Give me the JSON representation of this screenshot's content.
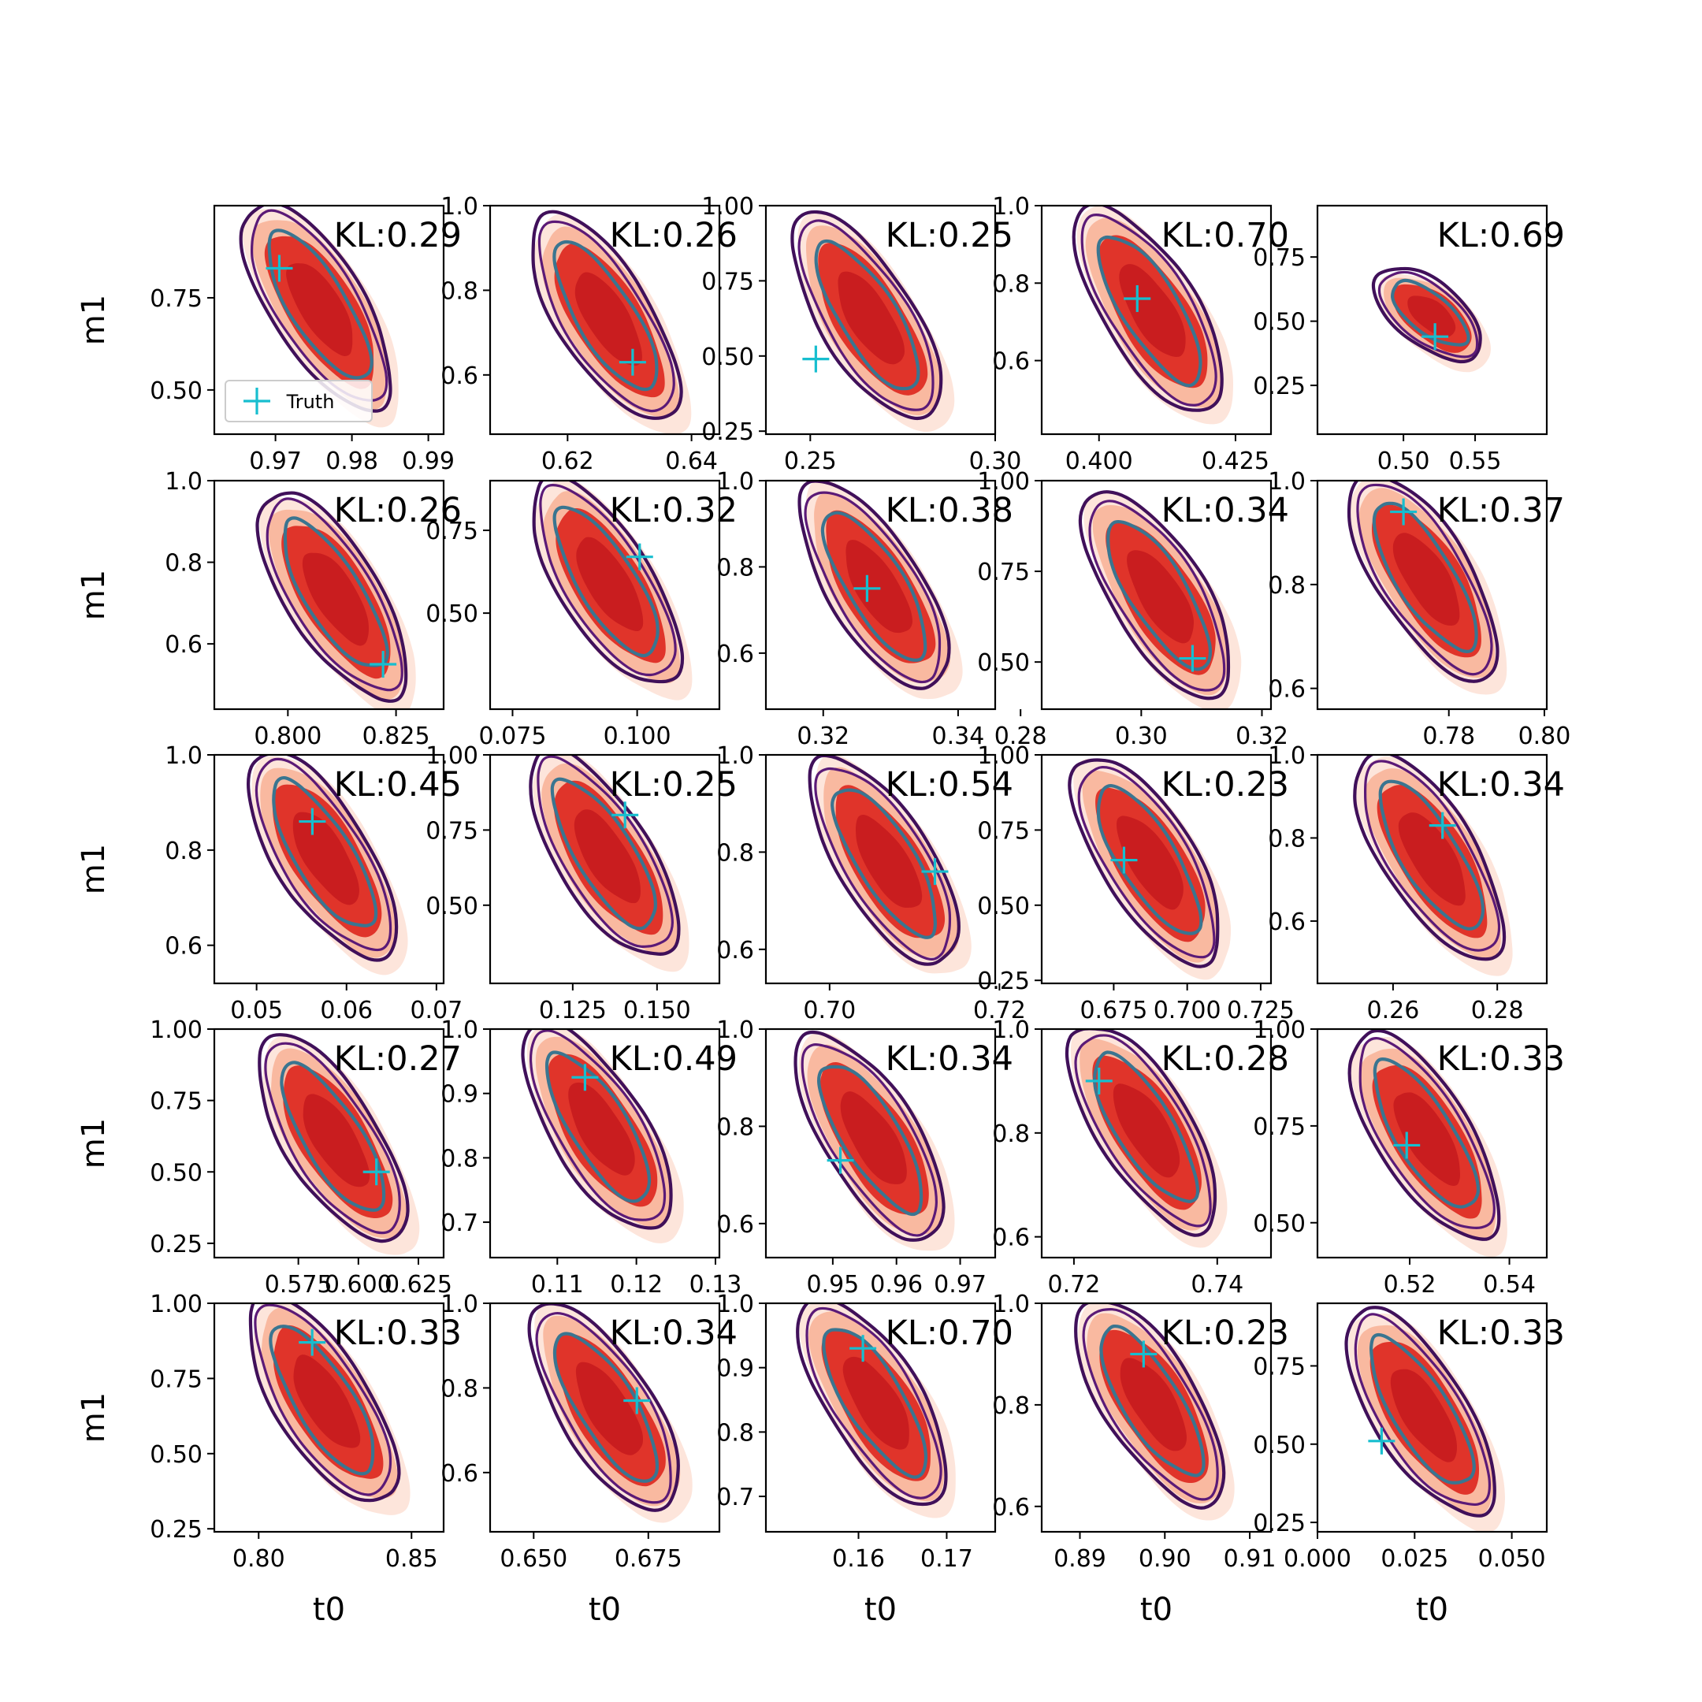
{
  "chart_data": {
    "type": "contour",
    "grid": "off",
    "legend": {
      "placement": "lower-left of first panel",
      "entries": [
        "Truth"
      ]
    },
    "colors": {
      "fill_outer": "#fde5db",
      "fill_mid": "#f9b9a0",
      "fill_inner": "#e0342a",
      "fill_core": "#c91d1f",
      "line_outer": "#40105a",
      "line_mid": "#5b1a77",
      "line_inner": "#3a7590",
      "truth": "#17becf"
    },
    "panels": [
      {
        "kl": "KL:0.29",
        "xlim": [
          0.962,
          0.992
        ],
        "ylim": [
          0.38,
          1.0
        ],
        "xticks": [
          0.97,
          0.98,
          0.99
        ],
        "xtick_labels": [
          "0.97",
          "0.98",
          "0.99"
        ],
        "yticks": [
          0.5,
          0.75
        ],
        "ytick_labels": [
          "0.50",
          "0.75"
        ],
        "ylabel": "m1",
        "xlabel": "",
        "truth": [
          0.9705,
          0.83
        ]
      },
      {
        "kl": "KL:0.26",
        "xlim": [
          0.6075,
          0.6445
        ],
        "ylim": [
          0.46,
          1.0
        ],
        "xticks": [
          0.62,
          0.64
        ],
        "xtick_labels": [
          "0.62",
          "0.64"
        ],
        "yticks": [
          0.6,
          0.8,
          1.0
        ],
        "ytick_labels": [
          "0.6",
          "0.8",
          "1.0"
        ],
        "ylabel": "",
        "xlabel": "",
        "truth": [
          0.6305,
          0.63
        ]
      },
      {
        "kl": "KL:0.25",
        "xlim": [
          0.238,
          0.3
        ],
        "ylim": [
          0.24,
          1.0
        ],
        "xticks": [
          0.25,
          0.3
        ],
        "xtick_labels": [
          "0.25",
          "0.30"
        ],
        "yticks": [
          0.25,
          0.5,
          0.75,
          1.0
        ],
        "ytick_labels": [
          "0.25",
          "0.50",
          "0.75",
          "1.00"
        ],
        "ylabel": "",
        "xlabel": "",
        "truth": [
          0.2515,
          0.49
        ]
      },
      {
        "kl": "KL:0.70",
        "xlim": [
          0.3895,
          0.4315
        ],
        "ylim": [
          0.41,
          1.0
        ],
        "xticks": [
          0.4,
          0.425
        ],
        "xtick_labels": [
          "0.400",
          "0.425"
        ],
        "yticks": [
          0.6,
          0.8,
          1.0
        ],
        "ytick_labels": [
          "0.6",
          "0.8",
          "1.0"
        ],
        "ylabel": "",
        "xlabel": "",
        "truth": [
          0.407,
          0.76
        ]
      },
      {
        "kl": "KL:0.69",
        "xlim": [
          0.44,
          0.6
        ],
        "ylim": [
          0.06,
          0.95
        ],
        "xticks": [
          0.5,
          0.55
        ],
        "xtick_labels": [
          "0.50",
          "0.55"
        ],
        "yticks": [
          0.25,
          0.5,
          0.75
        ],
        "ytick_labels": [
          "0.25",
          "0.50",
          "0.75"
        ],
        "ylabel": "",
        "xlabel": "",
        "truth": [
          0.522,
          0.44
        ]
      },
      {
        "kl": "KL:0.26",
        "xlim": [
          0.783,
          0.836
        ],
        "ylim": [
          0.44,
          1.0
        ],
        "xticks": [
          0.8,
          0.825
        ],
        "xtick_labels": [
          "0.800",
          "0.825"
        ],
        "yticks": [
          0.6,
          0.8,
          1.0
        ],
        "ytick_labels": [
          "0.6",
          "0.8",
          "1.0"
        ],
        "ylabel": "m1",
        "xlabel": "",
        "truth": [
          0.822,
          0.55
        ]
      },
      {
        "kl": "KL:0.32",
        "xlim": [
          0.0705,
          0.1165
        ],
        "ylim": [
          0.21,
          0.9
        ],
        "xticks": [
          0.075,
          0.1
        ],
        "xtick_labels": [
          "0.075",
          "0.100"
        ],
        "yticks": [
          0.5,
          0.75
        ],
        "ytick_labels": [
          "0.50",
          "0.75"
        ],
        "ylabel": "",
        "xlabel": "",
        "truth": [
          0.1005,
          0.67
        ]
      },
      {
        "kl": "KL:0.38",
        "xlim": [
          0.3115,
          0.3455
        ],
        "ylim": [
          0.47,
          1.0
        ],
        "xticks": [
          0.32,
          0.34
        ],
        "xtick_labels": [
          "0.32",
          "0.34"
        ],
        "yticks": [
          0.6,
          0.8,
          1.0
        ],
        "ytick_labels": [
          "0.6",
          "0.8",
          "1.0"
        ],
        "ylabel": "",
        "xlabel": "",
        "truth": [
          0.3265,
          0.75
        ]
      },
      {
        "kl": "KL:0.34",
        "xlim": [
          0.2835,
          0.3215
        ],
        "ylim": [
          0.37,
          1.0
        ],
        "xticks": [
          0.28,
          0.3,
          0.32
        ],
        "xtick_labels": [
          "0.28",
          "0.30",
          "0.32"
        ],
        "yticks": [
          0.5,
          0.75,
          1.0
        ],
        "ytick_labels": [
          "0.50",
          "0.75",
          "1.00"
        ],
        "ylabel": "",
        "xlabel": "",
        "truth": [
          0.3085,
          0.51
        ]
      },
      {
        "kl": "KL:0.37",
        "xlim": [
          0.7525,
          0.8005
        ],
        "ylim": [
          0.56,
          1.0
        ],
        "xticks": [
          0.78,
          0.8
        ],
        "xtick_labels": [
          "0.78",
          "0.80"
        ],
        "yticks": [
          0.6,
          0.8,
          1.0
        ],
        "ytick_labels": [
          "0.6",
          "0.8",
          "1.0"
        ],
        "ylabel": "",
        "xlabel": "",
        "truth": [
          0.7705,
          0.94
        ]
      },
      {
        "kl": "KL:0.45",
        "xlim": [
          0.0453,
          0.0708
        ],
        "ylim": [
          0.52,
          1.0
        ],
        "xticks": [
          0.05,
          0.06,
          0.07
        ],
        "xtick_labels": [
          "0.05",
          "0.06",
          "0.07"
        ],
        "yticks": [
          0.6,
          0.8,
          1.0
        ],
        "ytick_labels": [
          "0.6",
          "0.8",
          "1.0"
        ],
        "ylabel": "m1",
        "xlabel": "",
        "truth": [
          0.0562,
          0.86
        ]
      },
      {
        "kl": "KL:0.25",
        "xlim": [
          0.1005,
          0.1685
        ],
        "ylim": [
          0.24,
          1.0
        ],
        "xticks": [
          0.125,
          0.15
        ],
        "xtick_labels": [
          "0.125",
          "0.150"
        ],
        "yticks": [
          0.5,
          0.75,
          1.0
        ],
        "ytick_labels": [
          "0.50",
          "0.75",
          "1.00"
        ],
        "ylabel": "",
        "xlabel": "",
        "truth": [
          0.1405,
          0.8
        ]
      },
      {
        "kl": "KL:0.54",
        "xlim": [
          0.6925,
          0.7195
        ],
        "ylim": [
          0.53,
          1.0
        ],
        "xticks": [
          0.7,
          0.72
        ],
        "xtick_labels": [
          "0.70",
          "0.72"
        ],
        "yticks": [
          0.6,
          0.8,
          1.0
        ],
        "ytick_labels": [
          "0.6",
          "0.8",
          "1.0"
        ],
        "ylabel": "",
        "xlabel": "",
        "truth": [
          0.7124,
          0.76
        ]
      },
      {
        "kl": "KL:0.23",
        "xlim": [
          0.6505,
          0.7285
        ],
        "ylim": [
          0.24,
          1.0
        ],
        "xticks": [
          0.675,
          0.7,
          0.725
        ],
        "xtick_labels": [
          "0.675",
          "0.700",
          "0.725"
        ],
        "yticks": [
          0.25,
          0.5,
          0.75,
          1.0
        ],
        "ytick_labels": [
          "0.25",
          "0.50",
          "0.75",
          "1.00"
        ],
        "ylabel": "",
        "xlabel": "",
        "truth": [
          0.6785,
          0.65
        ]
      },
      {
        "kl": "KL:0.34",
        "xlim": [
          0.2455,
          0.2895
        ],
        "ylim": [
          0.45,
          1.0
        ],
        "xticks": [
          0.26,
          0.28
        ],
        "xtick_labels": [
          "0.26",
          "0.28"
        ],
        "yticks": [
          0.6,
          0.8,
          1.0
        ],
        "ytick_labels": [
          "0.6",
          "0.8",
          "1.0"
        ],
        "ylabel": "",
        "xlabel": "",
        "truth": [
          0.2695,
          0.83
        ]
      },
      {
        "kl": "KL:0.27",
        "xlim": [
          0.54,
          0.6355
        ],
        "ylim": [
          0.2,
          1.0
        ],
        "xticks": [
          0.575,
          0.6,
          0.625
        ],
        "xtick_labels": [
          "0.575",
          "0.600",
          "0.625"
        ],
        "yticks": [
          0.25,
          0.5,
          0.75,
          1.0
        ],
        "ytick_labels": [
          "0.25",
          "0.50",
          "0.75",
          "1.00"
        ],
        "ylabel": "m1",
        "xlabel": "",
        "truth": [
          0.6075,
          0.5
        ]
      },
      {
        "kl": "KL:0.49",
        "xlim": [
          0.1015,
          0.1305
        ],
        "ylim": [
          0.645,
          1.0
        ],
        "xticks": [
          0.11,
          0.12,
          0.13
        ],
        "xtick_labels": [
          "0.11",
          "0.12",
          "0.13"
        ],
        "yticks": [
          0.7,
          0.8,
          0.9,
          1.0
        ],
        "ytick_labels": [
          "0.7",
          "0.8",
          "0.9",
          "1.0"
        ],
        "ylabel": "",
        "xlabel": "",
        "truth": [
          0.1135,
          0.925
        ]
      },
      {
        "kl": "KL:0.34",
        "xlim": [
          0.9395,
          0.9755
        ],
        "ylim": [
          0.53,
          1.0
        ],
        "xticks": [
          0.95,
          0.96,
          0.97
        ],
        "xtick_labels": [
          "0.95",
          "0.96",
          "0.97"
        ],
        "yticks": [
          0.6,
          0.8,
          1.0
        ],
        "ytick_labels": [
          "0.6",
          "0.8",
          "1.0"
        ],
        "ylabel": "",
        "xlabel": "",
        "truth": [
          0.9512,
          0.73
        ]
      },
      {
        "kl": "KL:0.28",
        "xlim": [
          0.7155,
          0.7475
        ],
        "ylim": [
          0.56,
          1.0
        ],
        "xticks": [
          0.72,
          0.74
        ],
        "xtick_labels": [
          "0.72",
          "0.74"
        ],
        "yticks": [
          0.6,
          0.8,
          1.0
        ],
        "ytick_labels": [
          "0.6",
          "0.8",
          "1.0"
        ],
        "ylabel": "",
        "xlabel": "",
        "truth": [
          0.7235,
          0.9
        ]
      },
      {
        "kl": "KL:0.33",
        "xlim": [
          0.5015,
          0.5475
        ],
        "ylim": [
          0.41,
          1.0
        ],
        "xticks": [
          0.52,
          0.54
        ],
        "xtick_labels": [
          "0.52",
          "0.54"
        ],
        "yticks": [
          0.5,
          0.75,
          1.0
        ],
        "ytick_labels": [
          "0.50",
          "0.75",
          "1.00"
        ],
        "ylabel": "",
        "xlabel": "",
        "truth": [
          0.5194,
          0.7
        ]
      },
      {
        "kl": "KL:0.33",
        "xlim": [
          0.7855,
          0.8605
        ],
        "ylim": [
          0.24,
          1.0
        ],
        "xticks": [
          0.8,
          0.85
        ],
        "xtick_labels": [
          "0.80",
          "0.85"
        ],
        "yticks": [
          0.25,
          0.5,
          0.75,
          1.0
        ],
        "ytick_labels": [
          "0.25",
          "0.50",
          "0.75",
          "1.00"
        ],
        "ylabel": "m1",
        "xlabel": "t0",
        "truth": [
          0.8175,
          0.87
        ]
      },
      {
        "kl": "KL:0.34",
        "xlim": [
          0.6405,
          0.6905
        ],
        "ylim": [
          0.46,
          1.0
        ],
        "xticks": [
          0.65,
          0.675
        ],
        "xtick_labels": [
          "0.650",
          "0.675"
        ],
        "yticks": [
          0.6,
          0.8,
          1.0
        ],
        "ytick_labels": [
          "0.6",
          "0.8",
          "1.0"
        ],
        "ylabel": "",
        "xlabel": "t0",
        "truth": [
          0.6725,
          0.77
        ]
      },
      {
        "kl": "KL:0.70",
        "xlim": [
          0.1495,
          0.1755
        ],
        "ylim": [
          0.645,
          1.0
        ],
        "xticks": [
          0.16,
          0.17
        ],
        "xtick_labels": [
          "0.16",
          "0.17"
        ],
        "yticks": [
          0.7,
          0.8,
          0.9,
          1.0
        ],
        "ytick_labels": [
          "0.7",
          "0.8",
          "0.9",
          "1.0"
        ],
        "ylabel": "",
        "xlabel": "t0",
        "truth": [
          0.1605,
          0.93
        ]
      },
      {
        "kl": "KL:0.23",
        "xlim": [
          0.8855,
          0.9125
        ],
        "ylim": [
          0.55,
          1.0
        ],
        "xticks": [
          0.89,
          0.9,
          0.91
        ],
        "xtick_labels": [
          "0.89",
          "0.90",
          "0.91"
        ],
        "yticks": [
          0.6,
          0.8,
          1.0
        ],
        "ytick_labels": [
          "0.6",
          "0.8",
          "1.0"
        ],
        "ylabel": "",
        "xlabel": "t0",
        "truth": [
          0.8975,
          0.9
        ]
      },
      {
        "kl": "KL:0.33",
        "xlim": [
          0.0,
          0.059
        ],
        "ylim": [
          0.22,
          0.95
        ],
        "xticks": [
          0.0,
          0.025,
          0.05
        ],
        "xtick_labels": [
          "0.000",
          "0.025",
          "0.050"
        ],
        "yticks": [
          0.25,
          0.5,
          0.75
        ],
        "ytick_labels": [
          "0.25",
          "0.50",
          "0.75"
        ],
        "ylabel": "",
        "xlabel": "t0",
        "truth": [
          0.0165,
          0.51
        ]
      }
    ]
  }
}
